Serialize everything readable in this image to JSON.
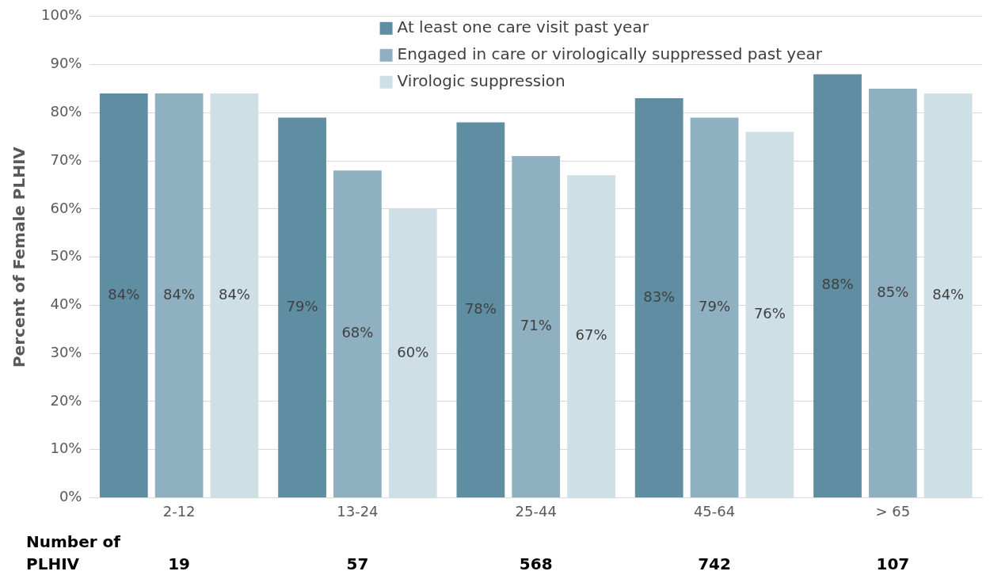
{
  "chart_data": {
    "type": "bar",
    "ylabel": "Percent of Female PLHIV",
    "categories": [
      "2-12",
      "13-24",
      "25-44",
      "45-64",
      "> 65"
    ],
    "series": [
      {
        "name": "At least one care visit past year",
        "color": "#5f8ea3",
        "values": [
          84,
          79,
          78,
          83,
          88
        ],
        "value_labels": [
          "84%",
          "79%",
          "78%",
          "83%",
          "88%"
        ]
      },
      {
        "name": "Engaged in care or virologically suppressed past year",
        "color": "#8fb0c0",
        "values": [
          84,
          68,
          71,
          79,
          85
        ],
        "value_labels": [
          "84%",
          "68%",
          "71%",
          "79%",
          "85%"
        ]
      },
      {
        "name": "Virologic suppression",
        "color": "#cfdfe6",
        "values": [
          84,
          60,
          67,
          76,
          84
        ],
        "value_labels": [
          "84%",
          "60%",
          "67%",
          "76%",
          "84%"
        ]
      }
    ],
    "ylim": [
      0,
      100
    ],
    "yticks": [
      {
        "value": 0,
        "label": "0%"
      },
      {
        "value": 10,
        "label": "10%"
      },
      {
        "value": 20,
        "label": "20%"
      },
      {
        "value": 30,
        "label": "30%"
      },
      {
        "value": 40,
        "label": "40%"
      },
      {
        "value": 50,
        "label": "50%"
      },
      {
        "value": 60,
        "label": "60%"
      },
      {
        "value": 70,
        "label": "70%"
      },
      {
        "value": 80,
        "label": "80%"
      },
      {
        "value": 90,
        "label": "90%"
      },
      {
        "value": 100,
        "label": "100%"
      }
    ],
    "grid": "y",
    "legend": "top",
    "annotations": [
      "Number of PLHIV",
      "19",
      "57",
      "568",
      "742",
      "107"
    ]
  }
}
